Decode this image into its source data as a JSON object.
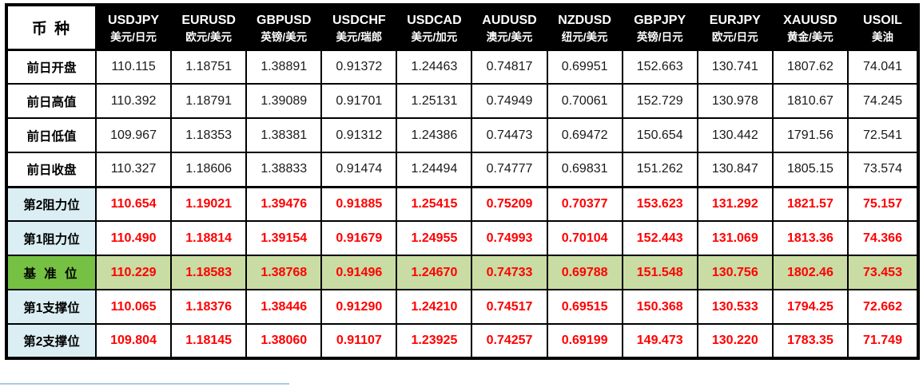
{
  "colors": {
    "header_bg": "#000000",
    "header_text": "#ffffff",
    "value_red": "#ff0000",
    "label_blue_bg": "#daeef3",
    "pivot_label_bg": "#76c043",
    "pivot_row_bg": "#c9dca3",
    "border": "#000000",
    "bottom_line": "#a9cce3"
  },
  "chart_data": {
    "type": "table",
    "corner_label": "币 种",
    "columns": [
      {
        "symbol": "USDJPY",
        "name": "美元/日元"
      },
      {
        "symbol": "EURUSD",
        "name": "欧元/美元"
      },
      {
        "symbol": "GBPUSD",
        "name": "英镑/美元"
      },
      {
        "symbol": "USDCHF",
        "name": "美元/瑞郎"
      },
      {
        "symbol": "USDCAD",
        "name": "美元/加元"
      },
      {
        "symbol": "AUDUSD",
        "name": "澳元/美元"
      },
      {
        "symbol": "NZDUSD",
        "name": "纽元/美元"
      },
      {
        "symbol": "GBPJPY",
        "name": "英镑/日元"
      },
      {
        "symbol": "EURJPY",
        "name": "欧元/日元"
      },
      {
        "symbol": "XAUUSD",
        "name": "黄金/美元"
      },
      {
        "symbol": "USOIL",
        "name": "美油"
      }
    ],
    "rows": [
      {
        "label": "前日开盘",
        "type": "normal",
        "values": [
          "110.115",
          "1.18751",
          "1.38891",
          "0.91372",
          "1.24463",
          "0.74817",
          "0.69951",
          "152.663",
          "130.741",
          "1807.62",
          "74.041"
        ]
      },
      {
        "label": "前日高值",
        "type": "normal",
        "values": [
          "110.392",
          "1.18791",
          "1.39089",
          "0.91701",
          "1.25131",
          "0.74949",
          "0.70061",
          "152.729",
          "130.978",
          "1810.67",
          "74.245"
        ]
      },
      {
        "label": "前日低值",
        "type": "normal",
        "values": [
          "109.967",
          "1.18353",
          "1.38381",
          "0.91312",
          "1.24386",
          "0.74473",
          "0.69472",
          "150.654",
          "130.442",
          "1791.56",
          "72.541"
        ]
      },
      {
        "label": "前日收盘",
        "type": "normal",
        "values": [
          "110.327",
          "1.18606",
          "1.38833",
          "0.91474",
          "1.24494",
          "0.74777",
          "0.69831",
          "151.262",
          "130.847",
          "1805.15",
          "73.574"
        ]
      },
      {
        "label": "第2阻力位",
        "type": "resistance",
        "values": [
          "110.654",
          "1.19021",
          "1.39476",
          "0.91885",
          "1.25415",
          "0.75209",
          "0.70377",
          "153.623",
          "131.292",
          "1821.57",
          "75.157"
        ]
      },
      {
        "label": "第1阻力位",
        "type": "resistance",
        "values": [
          "110.490",
          "1.18814",
          "1.39154",
          "0.91679",
          "1.24955",
          "0.74993",
          "0.70104",
          "152.443",
          "131.069",
          "1813.36",
          "74.366"
        ]
      },
      {
        "label": "基 准 位",
        "type": "pivot",
        "values": [
          "110.229",
          "1.18583",
          "1.38768",
          "0.91496",
          "1.24670",
          "0.74733",
          "0.69788",
          "151.548",
          "130.756",
          "1802.46",
          "73.453"
        ]
      },
      {
        "label": "第1支撑位",
        "type": "support",
        "values": [
          "110.065",
          "1.18376",
          "1.38446",
          "0.91290",
          "1.24210",
          "0.74517",
          "0.69515",
          "150.368",
          "130.533",
          "1794.25",
          "72.662"
        ]
      },
      {
        "label": "第2支撑位",
        "type": "support",
        "values": [
          "109.804",
          "1.18145",
          "1.38060",
          "0.91107",
          "1.23925",
          "0.74257",
          "0.69199",
          "149.473",
          "130.220",
          "1783.35",
          "71.749"
        ]
      }
    ]
  }
}
